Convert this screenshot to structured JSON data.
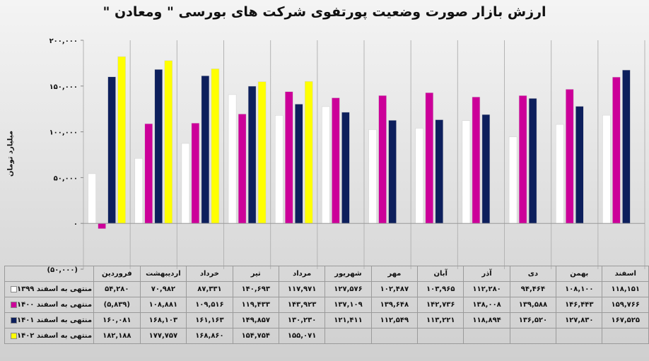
{
  "chart_data": {
    "type": "bar",
    "title": "ارزش بازار صورت وضعیت پورتفوی شرکت های بورسی \" ومعادن \"",
    "ylabel": "میلیارد تومان",
    "ylim": [
      -50000,
      200000
    ],
    "yticks": [
      -50000,
      0,
      50000,
      100000,
      150000,
      200000
    ],
    "ytick_labels": [
      "(۵۰,۰۰۰)",
      "۰",
      "۵۰,۰۰۰",
      "۱۰۰,۰۰۰",
      "۱۵۰,۰۰۰",
      "۲۰۰,۰۰۰"
    ],
    "grid": true,
    "legend": "table-left",
    "categories": [
      "فروردین",
      "اردیبهشت",
      "خرداد",
      "تیر",
      "مرداد",
      "شهریور",
      "مهر",
      "آبان",
      "آذر",
      "دی",
      "بهمن",
      "اسفند"
    ],
    "series": [
      {
        "name": "منتهی به اسفند ۱۳۹۹",
        "color": "#ffffff",
        "values": [
          54280,
          70982,
          87331,
          140693,
          117971,
          127576,
          102487,
          103965,
          112280,
          94464,
          108100,
          118151
        ],
        "labels": [
          "۵۴,۲۸۰",
          "۷۰,۹۸۲",
          "۸۷,۳۳۱",
          "۱۴۰,۶۹۳",
          "۱۱۷,۹۷۱",
          "۱۲۷,۵۷۶",
          "۱۰۲,۴۸۷",
          "۱۰۳,۹۶۵",
          "۱۱۲,۲۸۰",
          "۹۴,۴۶۴",
          "۱۰۸,۱۰۰",
          "۱۱۸,۱۵۱"
        ]
      },
      {
        "name": "منتهی به اسفند ۱۴۰۰",
        "color": "#cc0099",
        "values": [
          -5839,
          108881,
          109516,
          119433,
          143923,
          137109,
          139648,
          142736,
          138008,
          139588,
          146443,
          159766
        ],
        "labels": [
          "(۵,۸۳۹)",
          "۱۰۸,۸۸۱",
          "۱۰۹,۵۱۶",
          "۱۱۹,۴۳۳",
          "۱۴۳,۹۲۳",
          "۱۳۷,۱۰۹",
          "۱۳۹,۶۴۸",
          "۱۴۲,۷۳۶",
          "۱۳۸,۰۰۸",
          "۱۳۹,۵۸۸",
          "۱۴۶,۴۴۳",
          "۱۵۹,۷۶۶"
        ]
      },
      {
        "name": "منتهی به اسفند ۱۴۰۱",
        "color": "#0d1f5c",
        "values": [
          160081,
          168103,
          161163,
          149857,
          130230,
          121411,
          112549,
          113221,
          118894,
          136520,
          127830,
          167525
        ],
        "labels": [
          "۱۶۰,۰۸۱",
          "۱۶۸,۱۰۳",
          "۱۶۱,۱۶۳",
          "۱۴۹,۸۵۷",
          "۱۳۰,۲۳۰",
          "۱۲۱,۴۱۱",
          "۱۱۲,۵۴۹",
          "۱۱۳,۲۲۱",
          "۱۱۸,۸۹۴",
          "۱۳۶,۵۲۰",
          "۱۲۷,۸۳۰",
          "۱۶۷,۵۲۵"
        ]
      },
      {
        "name": "منتهی به اسفند ۱۴۰۲",
        "color": "#ffff00",
        "values": [
          182188,
          177757,
          168860,
          154754,
          155071,
          null,
          null,
          null,
          null,
          null,
          null,
          null
        ],
        "labels": [
          "۱۸۲,۱۸۸",
          "۱۷۷,۷۵۷",
          "۱۶۸,۸۶۰",
          "۱۵۴,۷۵۴",
          "۱۵۵,۰۷۱",
          "",
          "",
          "",
          "",
          "",
          "",
          ""
        ]
      }
    ]
  }
}
